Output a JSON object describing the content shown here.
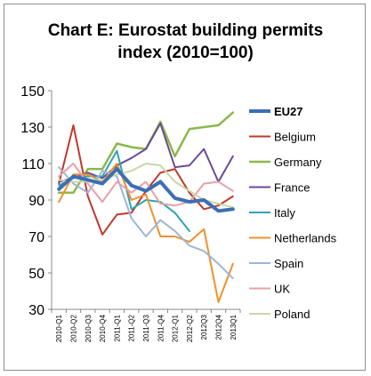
{
  "chart_data": {
    "type": "line",
    "title": "Chart E: Eurostat building permits index (2010=100)",
    "title_lines": [
      "Chart E: Eurostat building permits",
      "index (2010=100)"
    ],
    "xlabel": "",
    "ylabel": "",
    "ylim": [
      30,
      150
    ],
    "yticks": [
      "150",
      "130",
      "110",
      "90",
      "70",
      "50",
      "30"
    ],
    "ytick_values": [
      150,
      130,
      110,
      90,
      70,
      50,
      30
    ],
    "grid": false,
    "legend_position": "right",
    "categories": [
      "2010-Q1",
      "2010-Q2",
      "2010-Q3",
      "2010-Q4",
      "2011-Q1",
      "2011-Q2",
      "2011-Q3",
      "2011-Q4",
      "2012-Q1",
      "2012-Q2",
      "2012Q3",
      "2012Q4",
      "2013Q1"
    ],
    "series": [
      {
        "name": "EU27",
        "color": "#3c6fb4",
        "width": 4,
        "values": [
          96,
          103,
          101,
          99,
          107,
          98,
          95,
          100,
          91,
          89,
          90,
          84,
          85
        ]
      },
      {
        "name": "Belgium",
        "color": "#c0392b",
        "width": 2,
        "values": [
          99,
          131,
          92,
          71,
          82,
          83,
          95,
          105,
          107,
          94,
          85,
          87,
          92
        ]
      },
      {
        "name": "Germany",
        "color": "#8cb84a",
        "width": 2.5,
        "values": [
          94,
          94,
          107,
          107,
          121,
          119,
          118,
          133,
          114,
          129,
          130,
          131,
          138
        ]
      },
      {
        "name": "France",
        "color": "#6a4a96",
        "width": 2,
        "values": [
          100,
          102,
          105,
          102,
          109,
          113,
          118,
          132,
          108,
          109,
          118,
          100,
          114
        ]
      },
      {
        "name": "Italy",
        "color": "#2fa3b3",
        "width": 2,
        "values": [
          98,
          102,
          103,
          103,
          117,
          85,
          90,
          89,
          83,
          73,
          null,
          null,
          null
        ]
      },
      {
        "name": "Netherlands",
        "color": "#f0902c",
        "width": 2,
        "values": [
          89,
          104,
          104,
          100,
          110,
          90,
          93,
          70,
          70,
          67,
          74,
          34,
          55
        ]
      },
      {
        "name": "Spain",
        "color": "#9db6d8",
        "width": 2,
        "values": [
          108,
          99,
          94,
          106,
          103,
          80,
          70,
          79,
          73,
          65,
          62,
          55,
          47
        ]
      },
      {
        "name": "UK",
        "color": "#e8a0a6",
        "width": 2,
        "values": [
          103,
          110,
          99,
          89,
          100,
          94,
          100,
          88,
          87,
          89,
          99,
          100,
          95
        ]
      },
      {
        "name": "Poland",
        "color": "#c9d6a8",
        "width": 2,
        "values": [
          101,
          100,
          100,
          101,
          104,
          106,
          110,
          109,
          100,
          95,
          90,
          88,
          86
        ]
      }
    ]
  }
}
